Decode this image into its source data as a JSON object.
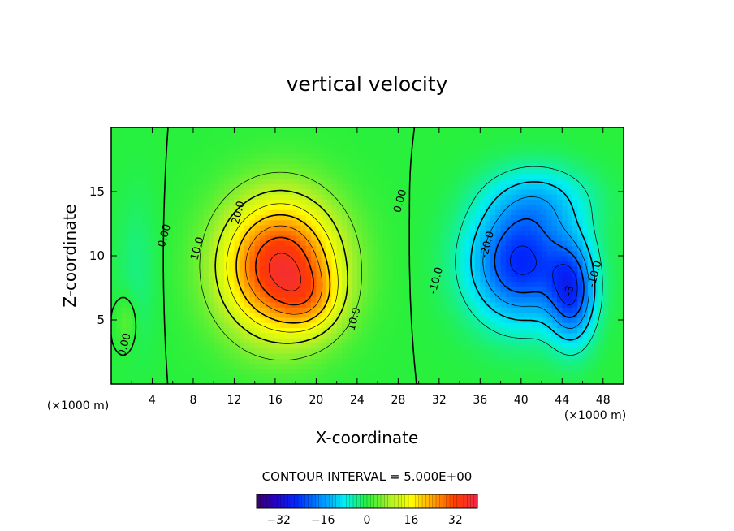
{
  "chart_data": {
    "type": "heatmap",
    "title": "vertical velocity",
    "xlabel": "X-coordinate",
    "ylabel": "Z-coordinate",
    "x_unit": "(×1000 m)",
    "z_unit": "(×1000 m)",
    "xlim": [
      0,
      50
    ],
    "ylim": [
      0,
      20
    ],
    "x_ticks": [
      4,
      8,
      12,
      16,
      20,
      24,
      28,
      32,
      36,
      40,
      44,
      48
    ],
    "y_ticks": [
      5,
      10,
      15
    ],
    "contour_interval_label": "CONTOUR INTERVAL = 5.000E+00",
    "contour_interval": 5.0,
    "colorbar": {
      "range": [
        -40,
        40
      ],
      "ticks": [
        -32,
        -16,
        0,
        16,
        32
      ]
    },
    "contour_labels": [
      {
        "text": "0.00",
        "x": 5.5,
        "z": 11.5
      },
      {
        "text": "0.00",
        "x": 1.6,
        "z": 3.0
      },
      {
        "text": "10.0",
        "x": 8.7,
        "z": 10.5
      },
      {
        "text": "20.0",
        "x": 12.7,
        "z": 13.3
      },
      {
        "text": "10.0",
        "x": 24.0,
        "z": 5.0
      },
      {
        "text": "0.00",
        "x": 28.5,
        "z": 14.2
      },
      {
        "text": "-10.0",
        "x": 32.0,
        "z": 8.0
      },
      {
        "text": "-20.0",
        "x": 37.0,
        "z": 10.8
      },
      {
        "text": "-10.0",
        "x": 47.5,
        "z": 8.5
      },
      {
        "text": "-3",
        "x": 45.0,
        "z": 7.2
      }
    ],
    "field_centers": [
      {
        "sign": "positive",
        "x": 16.0,
        "z": 8.8,
        "max": 38
      },
      {
        "sign": "negative",
        "x": 40.5,
        "z": 9.0,
        "min": -32
      },
      {
        "sign": "negative",
        "x": 45.0,
        "z": 7.0,
        "min": -35
      }
    ]
  }
}
